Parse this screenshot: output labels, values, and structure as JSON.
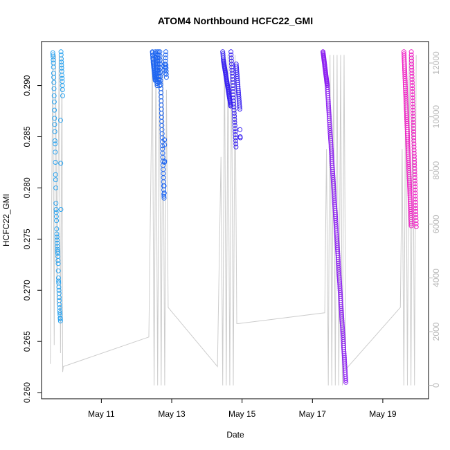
{
  "chart_data": {
    "type": "scatter",
    "title": "ATOM4 Northbound HCFC22_GMI",
    "xlabel": "Date",
    "ylabel": "HCFC22_GMI",
    "x_ticks": [
      "May 11",
      "May 13",
      "May 15",
      "May 17",
      "May 19"
    ],
    "x_tick_days": [
      11,
      13,
      15,
      17,
      19
    ],
    "xlim_days": [
      9.3,
      20.3
    ],
    "ylim": [
      0.2594,
      0.2943
    ],
    "y_ticks": [
      0.26,
      0.265,
      0.27,
      0.275,
      0.28,
      0.285,
      0.29
    ],
    "y_tick_labels": [
      "0.260",
      "0.265",
      "0.270",
      "0.275",
      "0.280",
      "0.285",
      "0.290"
    ],
    "y2_label": "",
    "y2lim": [
      -500,
      12800
    ],
    "y2_ticks": [
      0,
      2000,
      4000,
      6000,
      8000,
      10000,
      12000
    ],
    "altitude_color": "#cccccc",
    "series": [
      {
        "color": "#29a3f0",
        "span_days": [
          9.62,
          9.9
        ],
        "values": [
          0.2932,
          0.293,
          0.2928,
          0.2925,
          0.2922,
          0.2918,
          0.2912,
          0.2908,
          0.2903,
          0.2897,
          0.289,
          0.2884,
          0.2876,
          0.2868,
          0.2862,
          0.2855,
          0.2846,
          0.2843,
          0.2835,
          0.2825,
          0.2813,
          0.2808,
          0.28,
          0.2785,
          0.2779,
          0.2776,
          0.2772,
          0.2768,
          0.276,
          0.2755,
          0.2752,
          0.2749,
          0.2746,
          0.2743,
          0.274,
          0.2738,
          0.2736,
          0.2733,
          0.2729,
          0.2726,
          0.2719,
          0.2712,
          0.2709,
          0.2707,
          0.2703,
          0.27,
          0.2697,
          0.2693,
          0.269,
          0.2686,
          0.2683,
          0.268,
          0.2678,
          0.2676,
          0.2673,
          0.2672,
          0.267,
          0.2866,
          0.2824,
          0.2779,
          0.2933,
          0.293,
          0.2926,
          0.2923,
          0.292,
          0.2917,
          0.2914,
          0.291,
          0.2907,
          0.2904,
          0.29,
          0.2896,
          0.289
        ]
      },
      {
        "color": "#1f66f0",
        "span_days": [
          12.45,
          12.85
        ],
        "values": [
          0.2933,
          0.2932,
          0.293,
          0.2929,
          0.2927,
          0.2926,
          0.2925,
          0.2923,
          0.2922,
          0.2921,
          0.292,
          0.2919,
          0.2918,
          0.2917,
          0.2916,
          0.2915,
          0.2914,
          0.2913,
          0.2912,
          0.2911,
          0.291,
          0.2909,
          0.2908,
          0.2907,
          0.2906,
          0.2905,
          0.2933,
          0.2931,
          0.2928,
          0.2926,
          0.2924,
          0.2922,
          0.292,
          0.2918,
          0.2916,
          0.2914,
          0.2912,
          0.291,
          0.2908,
          0.2906,
          0.2904,
          0.2902,
          0.29,
          0.2933,
          0.293,
          0.2927,
          0.2924,
          0.2921,
          0.2918,
          0.2915,
          0.2912,
          0.2909,
          0.2906,
          0.2903,
          0.2933,
          0.293,
          0.2927,
          0.2924,
          0.2921,
          0.2918,
          0.2915,
          0.2912,
          0.2909,
          0.2906,
          0.2903,
          0.29,
          0.2933,
          0.2929,
          0.2925,
          0.2921,
          0.2917,
          0.2913,
          0.2909,
          0.2905,
          0.2901,
          0.2897,
          0.2893,
          0.2889,
          0.2885,
          0.2881,
          0.2877,
          0.2873,
          0.2869,
          0.2865,
          0.2861,
          0.2857,
          0.2853,
          0.2849,
          0.2845,
          0.2841,
          0.2838,
          0.2834,
          0.283,
          0.2826,
          0.2822,
          0.2818,
          0.2814,
          0.281,
          0.2806,
          0.2802,
          0.2798,
          0.2794,
          0.2792,
          0.279,
          0.2802,
          0.2795,
          0.2825,
          0.2847,
          0.2842,
          0.2826,
          0.2921,
          0.2918,
          0.2915,
          0.2912,
          0.2918,
          0.2921,
          0.2924,
          0.2927,
          0.293,
          0.2933,
          0.292,
          0.2917,
          0.2914,
          0.2911,
          0.2908
        ]
      },
      {
        "color": "#3b24f0",
        "span_days": [
          14.45,
          14.95
        ],
        "values": [
          0.2933,
          0.2931,
          0.2929,
          0.2927,
          0.2925,
          0.2924,
          0.2923,
          0.2922,
          0.2921,
          0.292,
          0.2919,
          0.2918,
          0.2917,
          0.2916,
          0.2915,
          0.2914,
          0.2913,
          0.2912,
          0.2911,
          0.291,
          0.2909,
          0.2908,
          0.2907,
          0.2906,
          0.2905,
          0.2904,
          0.2903,
          0.2902,
          0.2901,
          0.29,
          0.2899,
          0.2898,
          0.2897,
          0.2896,
          0.2895,
          0.2894,
          0.2893,
          0.2892,
          0.2891,
          0.289,
          0.2889,
          0.2888,
          0.2887,
          0.2886,
          0.2885,
          0.2884,
          0.2883,
          0.2882,
          0.2881,
          0.288,
          0.2933,
          0.293,
          0.2927,
          0.2924,
          0.2921,
          0.2918,
          0.2915,
          0.2912,
          0.2909,
          0.2906,
          0.2903,
          0.29,
          0.2897,
          0.2894,
          0.2891,
          0.2888,
          0.2885,
          0.2882,
          0.2879,
          0.2876,
          0.2873,
          0.287,
          0.2867,
          0.2864,
          0.2861,
          0.2858,
          0.2855,
          0.2852,
          0.2849,
          0.2846,
          0.2843,
          0.284,
          0.2921,
          0.2919,
          0.2917,
          0.2915,
          0.2913,
          0.2911,
          0.2909,
          0.2907,
          0.2905,
          0.2903,
          0.2901,
          0.2899,
          0.2897,
          0.2895,
          0.2893,
          0.2891,
          0.2889,
          0.2887,
          0.2885,
          0.2883,
          0.2881,
          0.2879,
          0.2877,
          0.2857,
          0.285,
          0.2849
        ]
      },
      {
        "color": "#8c1ff0",
        "span_days": [
          17.3,
          17.95
        ],
        "values": [
          0.2933,
          0.2932,
          0.2931,
          0.293,
          0.2929,
          0.2928,
          0.2927,
          0.2926,
          0.2925,
          0.2924,
          0.2923,
          0.2922,
          0.2921,
          0.292,
          0.2919,
          0.2918,
          0.2917,
          0.2916,
          0.2915,
          0.2914,
          0.2913,
          0.2912,
          0.2911,
          0.291,
          0.2909,
          0.2908,
          0.2907,
          0.2906,
          0.2905,
          0.2904,
          0.2903,
          0.2902,
          0.2901,
          0.29,
          0.2898,
          0.2896,
          0.2894,
          0.2892,
          0.289,
          0.2888,
          0.2886,
          0.2884,
          0.2882,
          0.288,
          0.2878,
          0.2876,
          0.2874,
          0.2872,
          0.287,
          0.2868,
          0.2866,
          0.2864,
          0.2862,
          0.286,
          0.2858,
          0.2856,
          0.2854,
          0.2852,
          0.285,
          0.2848,
          0.2846,
          0.2844,
          0.2842,
          0.284,
          0.2838,
          0.2836,
          0.2834,
          0.2832,
          0.283,
          0.2828,
          0.2826,
          0.2824,
          0.2822,
          0.282,
          0.2818,
          0.2816,
          0.2814,
          0.2812,
          0.281,
          0.2808,
          0.2806,
          0.2804,
          0.2802,
          0.28,
          0.2798,
          0.2796,
          0.2794,
          0.2792,
          0.279,
          0.2788,
          0.2786,
          0.2784,
          0.2782,
          0.278,
          0.2778,
          0.2776,
          0.2774,
          0.2772,
          0.277,
          0.2768,
          0.2766,
          0.2764,
          0.2762,
          0.276,
          0.2758,
          0.2756,
          0.2754,
          0.2752,
          0.275,
          0.2748,
          0.2746,
          0.2744,
          0.2742,
          0.274,
          0.2738,
          0.2736,
          0.2734,
          0.2732,
          0.273,
          0.2728,
          0.2726,
          0.2724,
          0.2722,
          0.272,
          0.2718,
          0.2716,
          0.2714,
          0.2712,
          0.271,
          0.2708,
          0.2706,
          0.2704,
          0.2702,
          0.27,
          0.2698,
          0.2696,
          0.2694,
          0.2692,
          0.269,
          0.2688,
          0.2686,
          0.2684,
          0.2682,
          0.268,
          0.2678,
          0.2676,
          0.2674,
          0.2672,
          0.267,
          0.2668,
          0.2666,
          0.2664,
          0.2662,
          0.266,
          0.2658,
          0.2656,
          0.2654,
          0.2652,
          0.265,
          0.2648,
          0.2646,
          0.2644,
          0.2642,
          0.264,
          0.2638,
          0.2636,
          0.2634,
          0.2632,
          0.263,
          0.2628,
          0.2626,
          0.2624,
          0.2622,
          0.262,
          0.2618,
          0.2616,
          0.2614,
          0.2612,
          0.261
        ]
      },
      {
        "color": "#f01fc4",
        "span_days": [
          19.6,
          19.95
        ],
        "values": [
          0.2933,
          0.2931,
          0.2929,
          0.2927,
          0.2925,
          0.2923,
          0.2921,
          0.2919,
          0.2917,
          0.2915,
          0.2913,
          0.2911,
          0.2909,
          0.2907,
          0.2905,
          0.2903,
          0.2901,
          0.2899,
          0.2897,
          0.2895,
          0.2893,
          0.2891,
          0.2889,
          0.2887,
          0.2885,
          0.2883,
          0.2881,
          0.2879,
          0.2877,
          0.2875,
          0.2873,
          0.2871,
          0.2869,
          0.2867,
          0.2865,
          0.2863,
          0.2861,
          0.2859,
          0.2857,
          0.2855,
          0.2853,
          0.2851,
          0.2849,
          0.2847,
          0.2845,
          0.2843,
          0.2841,
          0.2839,
          0.2837,
          0.2835,
          0.2833,
          0.2831,
          0.2829,
          0.2827,
          0.2825,
          0.2823,
          0.2821,
          0.2819,
          0.2817,
          0.2815,
          0.2813,
          0.2811,
          0.2809,
          0.2807,
          0.2805,
          0.2803,
          0.2801,
          0.2799,
          0.2797,
          0.2795,
          0.2793,
          0.2791,
          0.2789,
          0.2787,
          0.2785,
          0.2783,
          0.2781,
          0.2779,
          0.2777,
          0.2775,
          0.2773,
          0.2771,
          0.2769,
          0.2767,
          0.2765,
          0.2763,
          0.2933,
          0.293,
          0.2927,
          0.2924,
          0.2921,
          0.2918,
          0.2915,
          0.2912,
          0.2909,
          0.2906,
          0.2903,
          0.29,
          0.2897,
          0.2894,
          0.2891,
          0.2888,
          0.2885,
          0.2882,
          0.2879,
          0.2876,
          0.2873,
          0.287,
          0.2867,
          0.2864,
          0.2861,
          0.2858,
          0.2855,
          0.2852,
          0.2849,
          0.2846,
          0.2843,
          0.284,
          0.2837,
          0.2834,
          0.2831,
          0.2828,
          0.2825,
          0.2822,
          0.2819,
          0.2816,
          0.2813,
          0.281,
          0.2807,
          0.2804,
          0.2801,
          0.2798,
          0.2795,
          0.2792,
          0.2789,
          0.2786,
          0.2783,
          0.278,
          0.2777,
          0.2774,
          0.2771,
          0.2768,
          0.2765,
          0.2762
        ]
      }
    ],
    "altitude_track": [
      [
        9.55,
        800
      ],
      [
        9.62,
        12300
      ],
      [
        9.66,
        1500
      ],
      [
        9.7,
        12300
      ],
      [
        9.74,
        3000
      ],
      [
        9.8,
        12300
      ],
      [
        9.84,
        1200
      ],
      [
        9.88,
        12300
      ],
      [
        9.9,
        500
      ],
      [
        9.92,
        700
      ],
      [
        12.35,
        1800
      ],
      [
        12.45,
        12300
      ],
      [
        12.5,
        0
      ],
      [
        12.55,
        12300
      ],
      [
        12.6,
        0
      ],
      [
        12.65,
        12300
      ],
      [
        12.7,
        0
      ],
      [
        12.75,
        12300
      ],
      [
        12.8,
        0
      ],
      [
        12.85,
        11000
      ],
      [
        12.9,
        2900
      ],
      [
        14.3,
        700
      ],
      [
        14.4,
        8500
      ],
      [
        14.45,
        0
      ],
      [
        14.5,
        12300
      ],
      [
        14.55,
        0
      ],
      [
        14.6,
        12300
      ],
      [
        14.65,
        0
      ],
      [
        14.7,
        12300
      ],
      [
        14.75,
        0
      ],
      [
        14.8,
        12300
      ],
      [
        14.85,
        2300
      ],
      [
        14.9,
        2300
      ],
      [
        17.35,
        2700
      ],
      [
        17.4,
        8800
      ],
      [
        17.45,
        0
      ],
      [
        17.5,
        12300
      ],
      [
        17.55,
        0
      ],
      [
        17.6,
        12300
      ],
      [
        17.65,
        0
      ],
      [
        17.7,
        12300
      ],
      [
        17.75,
        0
      ],
      [
        17.8,
        12300
      ],
      [
        17.85,
        0
      ],
      [
        17.9,
        12300
      ],
      [
        17.95,
        600
      ],
      [
        19.5,
        2900
      ],
      [
        19.55,
        8800
      ],
      [
        19.6,
        0
      ],
      [
        19.65,
        12300
      ],
      [
        19.7,
        0
      ],
      [
        19.75,
        12300
      ],
      [
        19.8,
        0
      ],
      [
        19.85,
        12300
      ],
      [
        19.9,
        0
      ],
      [
        19.95,
        12300
      ]
    ]
  }
}
